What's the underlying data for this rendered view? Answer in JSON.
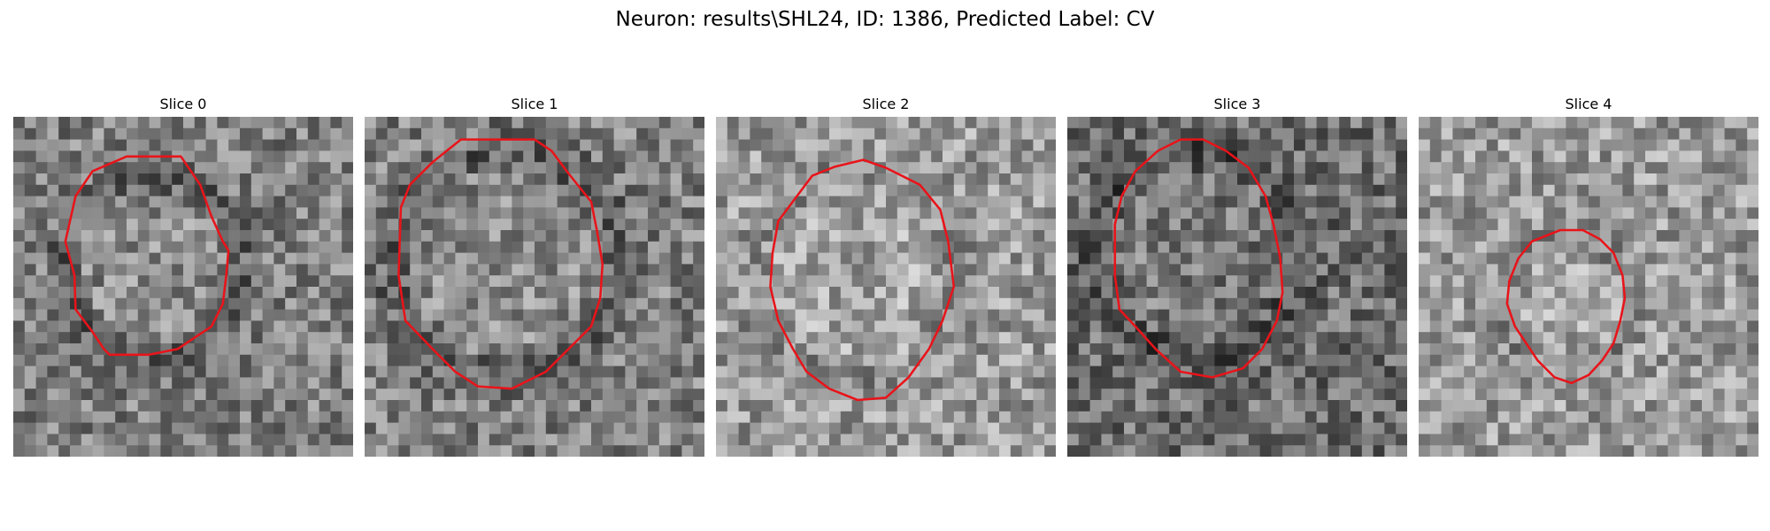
{
  "figure": {
    "title": "Neuron: results\\SHL24, ID: 1386, Predicted Label: CV"
  },
  "colors": {
    "contour": "#e8141a",
    "background": "#ffffff"
  },
  "panels": [
    {
      "title": "Slice 0",
      "tone": "mid",
      "ring": 0.55,
      "contour": [
        [
          100,
          35
        ],
        [
          70,
          48
        ],
        [
          55,
          70
        ],
        [
          46,
          110
        ],
        [
          54,
          140
        ],
        [
          55,
          170
        ],
        [
          70,
          190
        ],
        [
          80,
          205
        ],
        [
          85,
          210
        ],
        [
          120,
          210
        ],
        [
          145,
          205
        ],
        [
          160,
          195
        ],
        [
          175,
          185
        ],
        [
          185,
          165
        ],
        [
          188,
          140
        ],
        [
          190,
          118
        ],
        [
          185,
          110
        ],
        [
          175,
          88
        ],
        [
          165,
          60
        ],
        [
          148,
          35
        ]
      ]
    },
    {
      "title": "Slice 1",
      "tone": "mid",
      "ring": 0.6,
      "contour": [
        [
          85,
          20
        ],
        [
          60,
          40
        ],
        [
          40,
          60
        ],
        [
          32,
          80
        ],
        [
          30,
          140
        ],
        [
          36,
          180
        ],
        [
          60,
          205
        ],
        [
          80,
          225
        ],
        [
          100,
          238
        ],
        [
          130,
          240
        ],
        [
          160,
          225
        ],
        [
          180,
          205
        ],
        [
          200,
          185
        ],
        [
          208,
          160
        ],
        [
          210,
          130
        ],
        [
          205,
          100
        ],
        [
          200,
          75
        ],
        [
          180,
          50
        ],
        [
          165,
          30
        ],
        [
          150,
          20
        ]
      ]
    },
    {
      "title": "Slice 2",
      "tone": "light",
      "ring": 0.3,
      "contour": [
        [
          105,
          44
        ],
        [
          85,
          52
        ],
        [
          70,
          72
        ],
        [
          55,
          92
        ],
        [
          50,
          120
        ],
        [
          48,
          150
        ],
        [
          55,
          180
        ],
        [
          68,
          205
        ],
        [
          80,
          225
        ],
        [
          100,
          240
        ],
        [
          125,
          250
        ],
        [
          150,
          248
        ],
        [
          170,
          230
        ],
        [
          188,
          205
        ],
        [
          200,
          180
        ],
        [
          210,
          150
        ],
        [
          205,
          110
        ],
        [
          198,
          82
        ],
        [
          180,
          60
        ],
        [
          150,
          45
        ],
        [
          130,
          38
        ]
      ]
    },
    {
      "title": "Slice 3",
      "tone": "dark",
      "ring": 0.55,
      "contour": [
        [
          100,
          20
        ],
        [
          80,
          30
        ],
        [
          60,
          48
        ],
        [
          48,
          70
        ],
        [
          42,
          95
        ],
        [
          42,
          140
        ],
        [
          46,
          170
        ],
        [
          60,
          185
        ],
        [
          78,
          205
        ],
        [
          100,
          225
        ],
        [
          128,
          230
        ],
        [
          155,
          222
        ],
        [
          172,
          205
        ],
        [
          185,
          180
        ],
        [
          190,
          155
        ],
        [
          188,
          125
        ],
        [
          182,
          95
        ],
        [
          175,
          70
        ],
        [
          160,
          45
        ],
        [
          140,
          30
        ],
        [
          120,
          20
        ]
      ]
    },
    {
      "title": "Slice 4",
      "tone": "light",
      "ring": 0.35,
      "contour": [
        [
          125,
          100
        ],
        [
          100,
          110
        ],
        [
          88,
          125
        ],
        [
          80,
          145
        ],
        [
          78,
          165
        ],
        [
          85,
          185
        ],
        [
          95,
          200
        ],
        [
          105,
          215
        ],
        [
          120,
          230
        ],
        [
          135,
          235
        ],
        [
          150,
          228
        ],
        [
          162,
          215
        ],
        [
          172,
          200
        ],
        [
          178,
          180
        ],
        [
          182,
          160
        ],
        [
          180,
          140
        ],
        [
          172,
          120
        ],
        [
          160,
          108
        ],
        [
          145,
          100
        ]
      ]
    }
  ]
}
